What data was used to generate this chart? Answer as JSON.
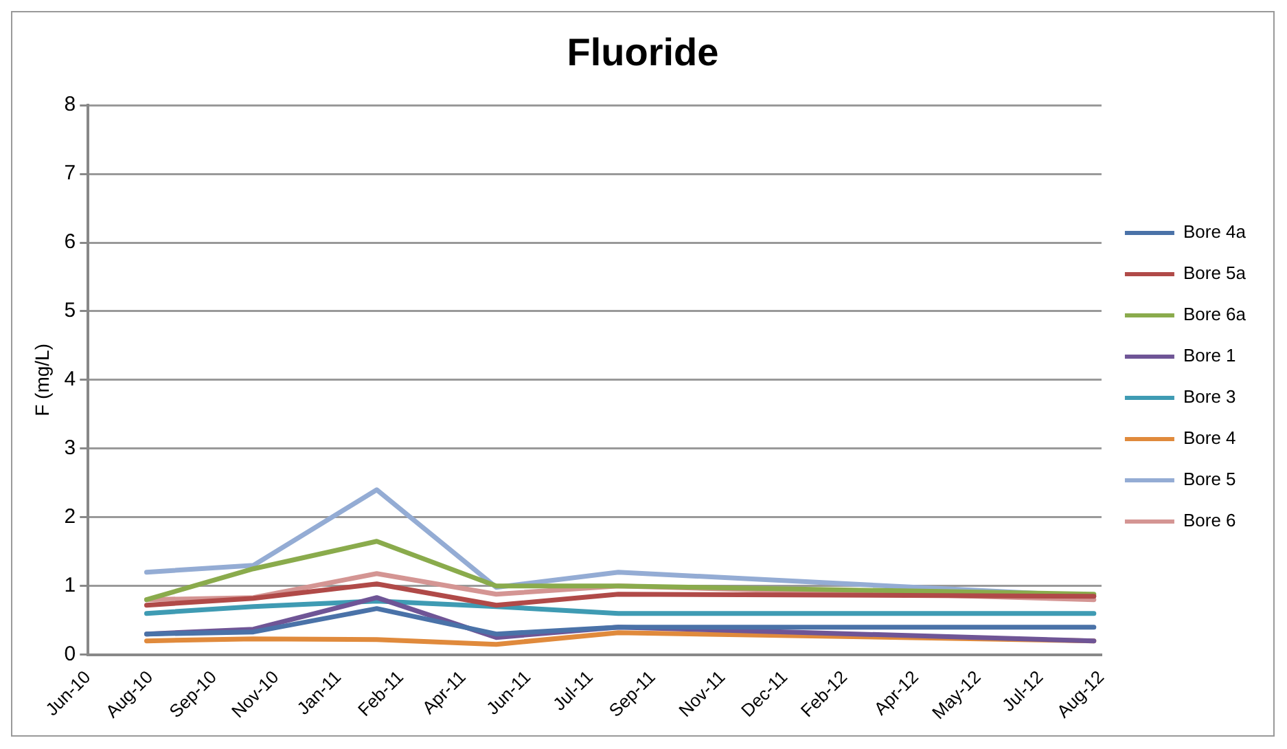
{
  "chart_data": {
    "type": "line",
    "title": "Fluoride",
    "ylabel": "F (mg/L)",
    "x": [
      "2010-08-05",
      "2010-10-28",
      "2011-02-02",
      "2011-05-07",
      "2011-08-11",
      "2012-08-19"
    ],
    "series": [
      {
        "name": "Bore 4a",
        "color": "#4a72a8",
        "values": [
          0.3,
          0.33,
          0.67,
          0.3,
          0.4,
          0.4
        ]
      },
      {
        "name": "Bore 5a",
        "color": "#b04a48",
        "values": [
          0.72,
          0.82,
          1.03,
          0.72,
          0.88,
          0.85
        ]
      },
      {
        "name": "Bore 6a",
        "color": "#8aab4c",
        "values": [
          0.8,
          1.25,
          1.65,
          1.0,
          1.0,
          0.88
        ]
      },
      {
        "name": "Bore 1",
        "color": "#6f5596",
        "values": [
          0.3,
          0.37,
          0.83,
          0.25,
          0.4,
          0.2
        ]
      },
      {
        "name": "Bore 3",
        "color": "#3f9bb3",
        "values": [
          0.6,
          0.7,
          0.78,
          0.7,
          0.6,
          0.6
        ]
      },
      {
        "name": "Bore 4",
        "color": "#e08a3c",
        "values": [
          0.2,
          0.23,
          0.22,
          0.15,
          0.32,
          0.2
        ]
      },
      {
        "name": "Bore 5",
        "color": "#94acd4",
        "values": [
          1.2,
          1.3,
          2.4,
          0.98,
          1.2,
          0.85
        ]
      },
      {
        "name": "Bore 6",
        "color": "#d49593",
        "values": [
          0.8,
          0.83,
          1.18,
          0.88,
          1.0,
          0.8
        ]
      }
    ],
    "xlim": [
      "2010-06-20",
      "2012-08-25"
    ],
    "xticks": [
      {
        "value": "2010-06-20",
        "label": "Jun-10"
      },
      {
        "value": "2010-08-08",
        "label": "Aug-10"
      },
      {
        "value": "2010-09-27",
        "label": "Sep-10"
      },
      {
        "value": "2010-11-15",
        "label": "Nov-10"
      },
      {
        "value": "2011-01-03",
        "label": "Jan-11"
      },
      {
        "value": "2011-02-21",
        "label": "Feb-11"
      },
      {
        "value": "2011-04-11",
        "label": "Apr-11"
      },
      {
        "value": "2011-06-01",
        "label": "Jun-11"
      },
      {
        "value": "2011-07-20",
        "label": "Jul-11"
      },
      {
        "value": "2011-09-07",
        "label": "Sep-11"
      },
      {
        "value": "2011-11-01",
        "label": "Nov-11"
      },
      {
        "value": "2011-12-20",
        "label": "Dec-11"
      },
      {
        "value": "2012-02-05",
        "label": "Feb-12"
      },
      {
        "value": "2012-04-01",
        "label": "Apr-12"
      },
      {
        "value": "2012-05-20",
        "label": "May-12"
      },
      {
        "value": "2012-07-08",
        "label": "Jul-12"
      },
      {
        "value": "2012-08-25",
        "label": "Aug-12"
      }
    ],
    "ylim": [
      0,
      8
    ],
    "yticks": [
      0,
      1,
      2,
      3,
      4,
      5,
      6,
      7,
      8
    ],
    "grid": "y",
    "legend": "right",
    "marker": "none",
    "line_style": "solid"
  }
}
